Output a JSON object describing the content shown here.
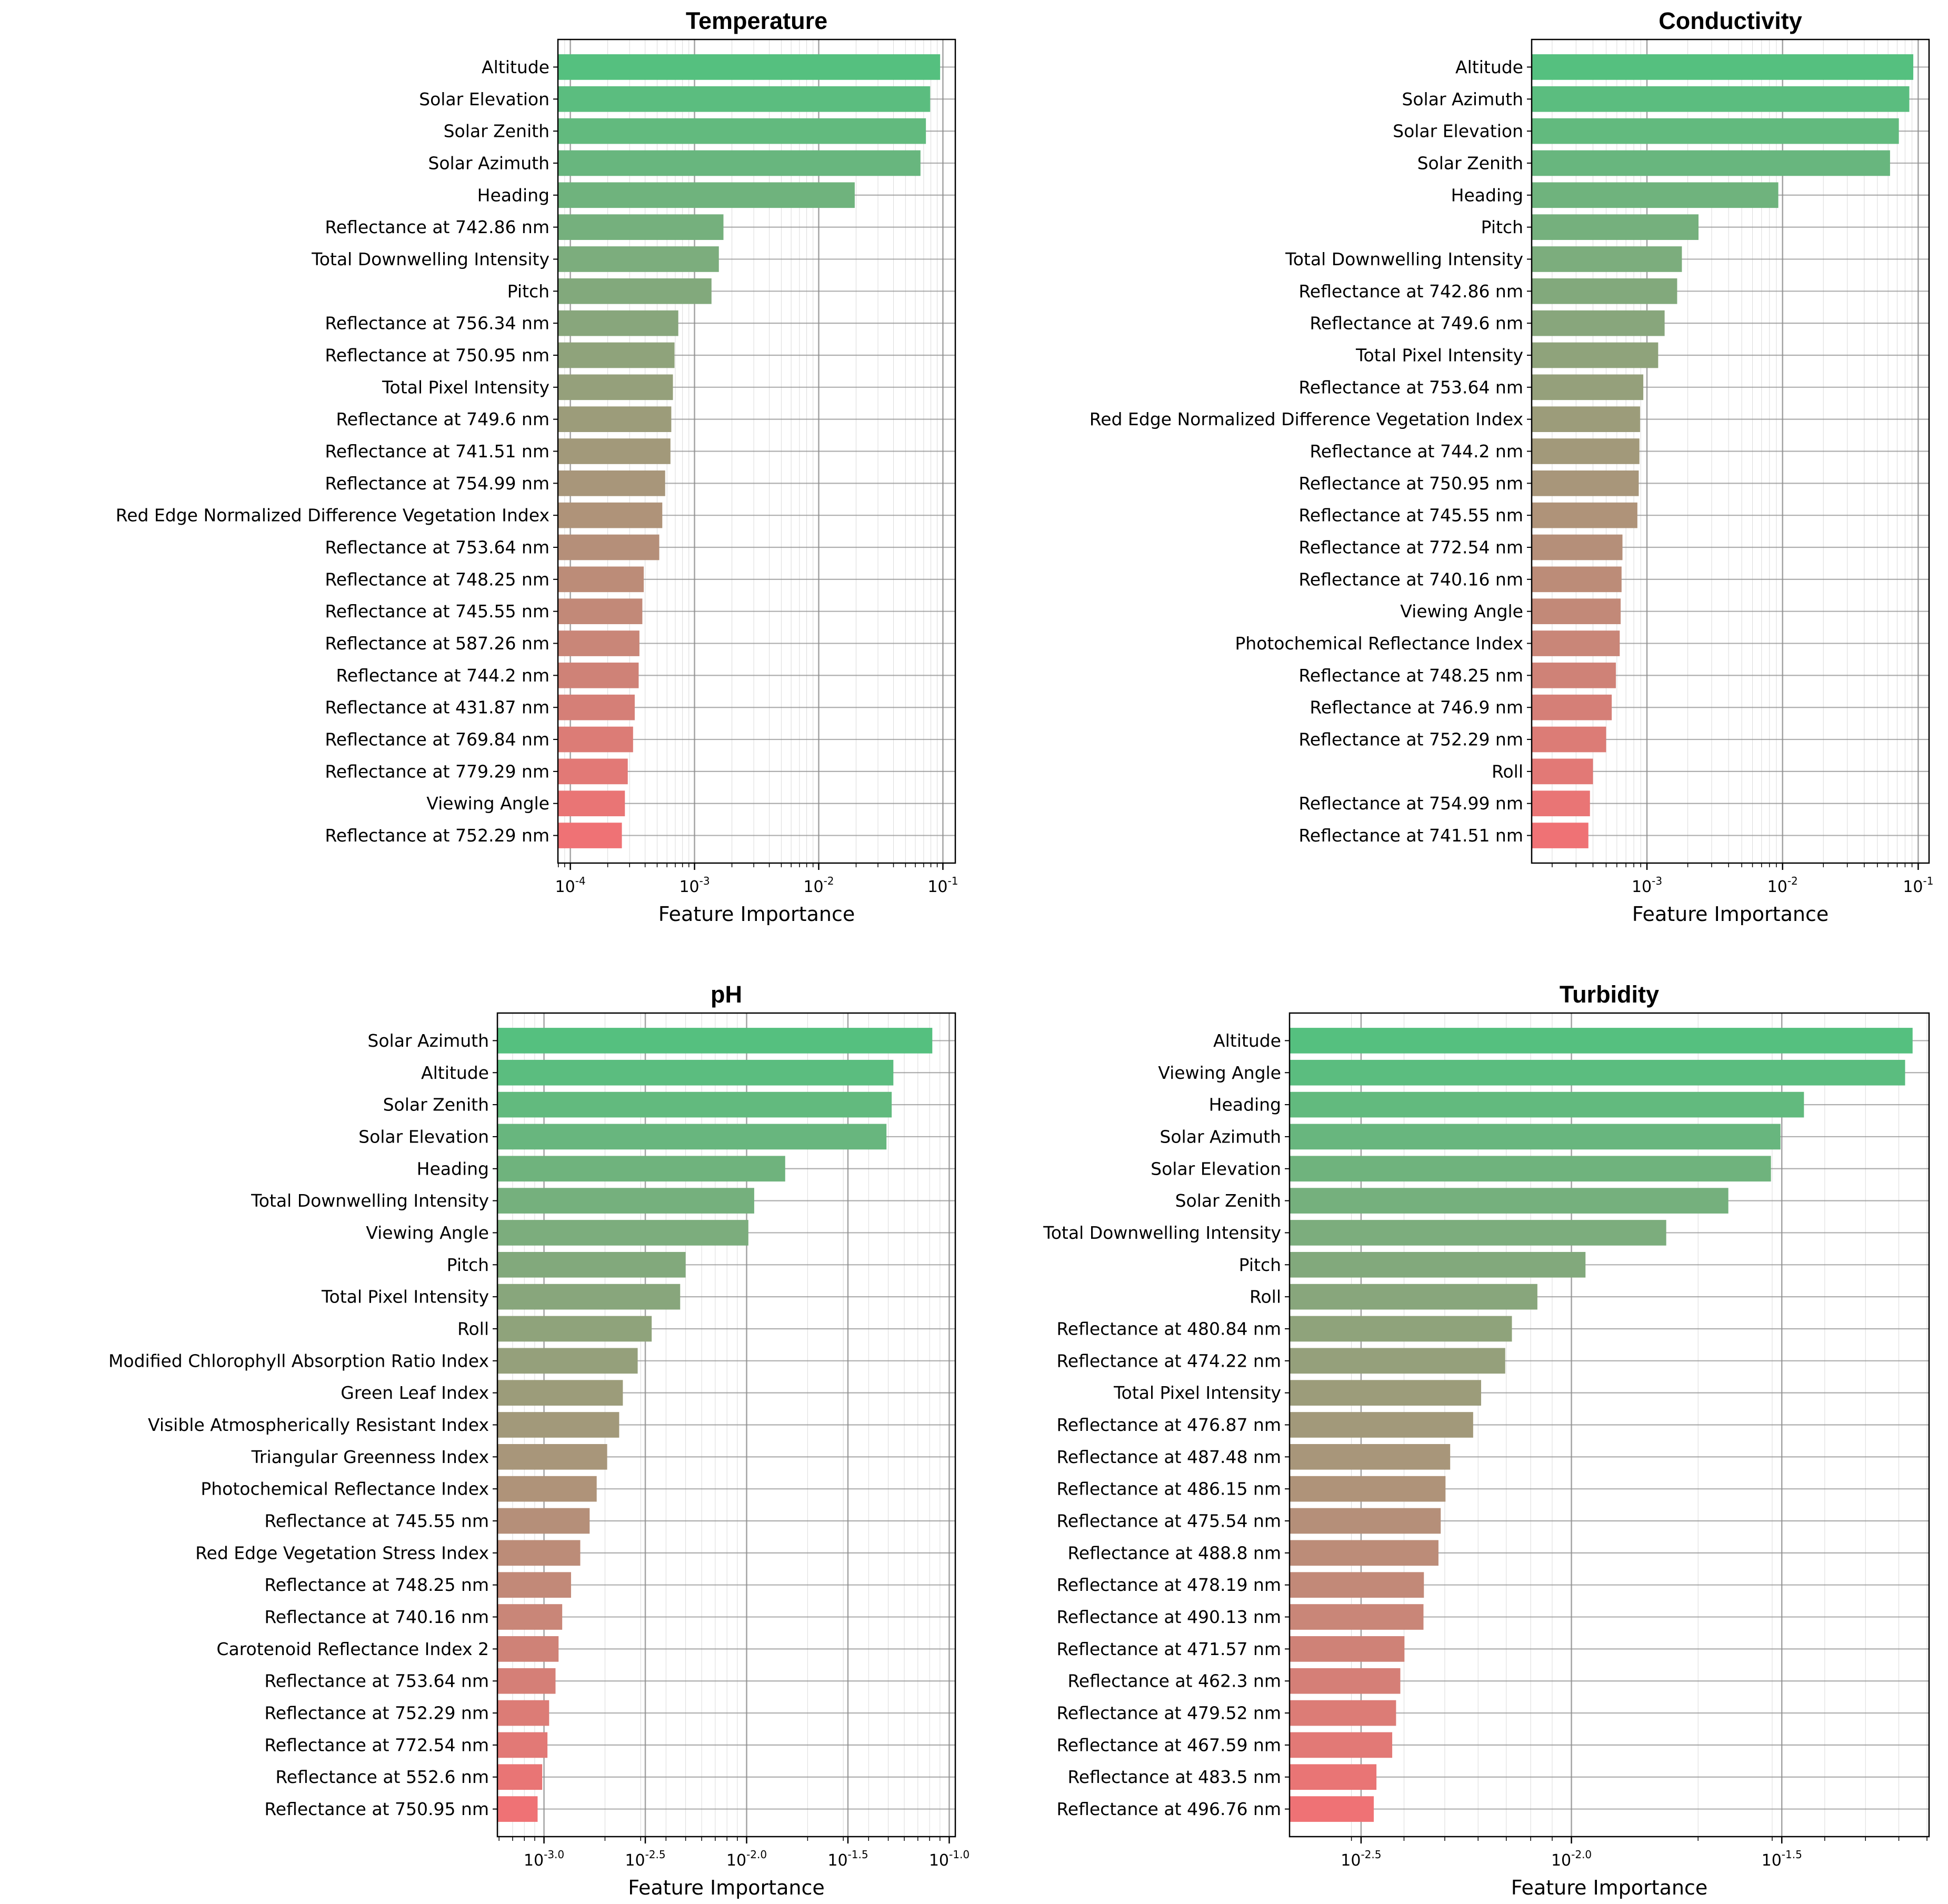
{
  "chart_data": [
    {
      "type": "bar",
      "orientation": "horizontal",
      "title": "Temperature",
      "xlabel": "Feature Importance",
      "xscale": "log",
      "xlim_log10": [
        -4.1,
        -0.9
      ],
      "xticks": [
        {
          "base": "10",
          "exp": "-4"
        },
        {
          "base": "10",
          "exp": "-3"
        },
        {
          "base": "10",
          "exp": "-2"
        },
        {
          "base": "10",
          "exp": "-1"
        }
      ],
      "xticks_log10": [
        -4,
        -3,
        -2,
        -1
      ],
      "minor_ticks": "log-decade",
      "grid": true,
      "categories": [
        "Altitude",
        "Solar Elevation",
        "Solar Zenith",
        "Solar Azimuth",
        "Heading",
        "Reflectance at 742.86 nm",
        "Total Downwelling Intensity",
        "Pitch",
        "Reflectance at 756.34 nm",
        "Reflectance at 750.95 nm",
        "Total Pixel Intensity",
        "Reflectance at 749.6 nm",
        "Reflectance at 741.51 nm",
        "Reflectance at 754.99 nm",
        "Red Edge Normalized Difference Vegetation Index",
        "Reflectance at 753.64 nm",
        "Reflectance at 748.25 nm",
        "Reflectance at 745.55 nm",
        "Reflectance at 587.26 nm",
        "Reflectance at 744.2 nm",
        "Reflectance at 431.87 nm",
        "Reflectance at 769.84 nm",
        "Reflectance at 779.29 nm",
        "Viewing Angle",
        "Reflectance at 752.29 nm"
      ],
      "values": [
        0.095,
        0.079,
        0.073,
        0.066,
        0.0195,
        0.00171,
        0.00157,
        0.00137,
        0.00074,
        0.00069,
        0.00067,
        0.00065,
        0.00064,
        0.00058,
        0.00055,
        0.00052,
        0.00039,
        0.00038,
        0.00036,
        0.000355,
        0.00033,
        0.00032,
        0.00029,
        0.000275,
        0.00026
      ]
    },
    {
      "type": "bar",
      "orientation": "horizontal",
      "title": "Conductivity",
      "xlabel": "Feature Importance",
      "xscale": "log",
      "xlim_log10": [
        -3.85,
        -0.92
      ],
      "xticks": [
        {
          "base": "10",
          "exp": "-3"
        },
        {
          "base": "10",
          "exp": "-2"
        },
        {
          "base": "10",
          "exp": "-1"
        }
      ],
      "xticks_log10": [
        -3,
        -2,
        -1
      ],
      "minor_ticks": "log-decade",
      "grid": true,
      "categories": [
        "Altitude",
        "Solar Azimuth",
        "Solar Elevation",
        "Solar Zenith",
        "Heading",
        "Pitch",
        "Total Downwelling Intensity",
        "Reflectance at 742.86 nm",
        "Reflectance at 749.6 nm",
        "Total Pixel Intensity",
        "Reflectance at 753.64 nm",
        "Red Edge Normalized Difference Vegetation Index",
        "Reflectance at 744.2 nm",
        "Reflectance at 750.95 nm",
        "Reflectance at 745.55 nm",
        "Reflectance at 772.54 nm",
        "Reflectance at 740.16 nm",
        "Viewing Angle",
        "Photochemical Reflectance Index",
        "Reflectance at 748.25 nm",
        "Reflectance at 746.9 nm",
        "Reflectance at 752.29 nm",
        "Roll",
        "Reflectance at 754.99 nm",
        "Reflectance at 741.51 nm"
      ],
      "values": [
        0.092,
        0.086,
        0.072,
        0.062,
        0.0093,
        0.0024,
        0.00181,
        0.00167,
        0.00135,
        0.00121,
        0.00094,
        0.00089,
        0.00088,
        0.00087,
        0.00085,
        0.00066,
        0.00065,
        0.00064,
        0.00063,
        0.00059,
        0.00055,
        0.0005,
        0.0004,
        0.00038,
        0.00037
      ]
    },
    {
      "type": "bar",
      "orientation": "horizontal",
      "title": "pH",
      "xlabel": "Feature Importance",
      "xscale": "log",
      "xlim_log10": [
        -3.23,
        -0.97
      ],
      "xticks": [
        {
          "base": "10",
          "exp": "-3.0"
        },
        {
          "base": "10",
          "exp": "-2.5"
        },
        {
          "base": "10",
          "exp": "-2.0"
        },
        {
          "base": "10",
          "exp": "-1.5"
        },
        {
          "base": "10",
          "exp": "-1.0"
        }
      ],
      "xticks_log10": [
        -3.0,
        -2.5,
        -2.0,
        -1.5,
        -1.0
      ],
      "minor_ticks": "log-decade",
      "grid": true,
      "categories": [
        "Solar Azimuth",
        "Altitude",
        "Solar Zenith",
        "Solar Elevation",
        "Heading",
        "Total Downwelling Intensity",
        "Viewing Angle",
        "Pitch",
        "Total Pixel Intensity",
        "Roll",
        "Modified Chlorophyll Absorption Ratio Index",
        "Green Leaf Index",
        "Visible Atmospherically Resistant Index",
        "Triangular Greenness Index",
        "Photochemical Reflectance Index",
        "Reflectance at 745.55 nm",
        "Red Edge Vegetation Stress Index",
        "Reflectance at 748.25 nm",
        "Reflectance at 740.16 nm",
        "Carotenoid Reflectance Index 2",
        "Reflectance at 753.64 nm",
        "Reflectance at 752.29 nm",
        "Reflectance at 772.54 nm",
        "Reflectance at 552.6 nm",
        "Reflectance at 750.95 nm"
      ],
      "values": [
        0.0825,
        0.053,
        0.052,
        0.049,
        0.0155,
        0.0109,
        0.0102,
        0.005,
        0.0047,
        0.0034,
        0.0029,
        0.00245,
        0.00235,
        0.00205,
        0.00182,
        0.00168,
        0.00151,
        0.00136,
        0.00123,
        0.00118,
        0.00114,
        0.00106,
        0.00104,
        0.00098,
        0.00093
      ]
    },
    {
      "type": "bar",
      "orientation": "horizontal",
      "title": "Turbidity",
      "xlabel": "Feature Importance",
      "xscale": "log",
      "xlim_log10": [
        -2.67,
        -1.15
      ],
      "xticks": [
        {
          "base": "10",
          "exp": "-2.5"
        },
        {
          "base": "10",
          "exp": "-2.0"
        },
        {
          "base": "10",
          "exp": "-1.5"
        }
      ],
      "xticks_log10": [
        -2.5,
        -2.0,
        -1.5
      ],
      "minor_ticks": "log-decade",
      "grid": true,
      "categories": [
        "Altitude",
        "Viewing Angle",
        "Heading",
        "Solar Azimuth",
        "Solar Elevation",
        "Solar Zenith",
        "Total Downwelling Intensity",
        "Pitch",
        "Roll",
        "Reflectance at 480.84 nm",
        "Reflectance at 474.22 nm",
        "Total Pixel Intensity",
        "Reflectance at 476.87 nm",
        "Reflectance at 487.48 nm",
        "Reflectance at 486.15 nm",
        "Reflectance at 475.54 nm",
        "Reflectance at 488.8 nm",
        "Reflectance at 478.19 nm",
        "Reflectance at 490.13 nm",
        "Reflectance at 471.57 nm",
        "Reflectance at 462.3 nm",
        "Reflectance at 479.52 nm",
        "Reflectance at 467.59 nm",
        "Reflectance at 483.5 nm",
        "Reflectance at 496.76 nm"
      ],
      "values": [
        0.0647,
        0.0621,
        0.0357,
        0.0314,
        0.0298,
        0.0236,
        0.0168,
        0.0108,
        0.0083,
        0.00722,
        0.00696,
        0.0061,
        0.00584,
        0.00515,
        0.00502,
        0.00489,
        0.00483,
        0.00446,
        0.00445,
        0.00401,
        0.00392,
        0.00383,
        0.00375,
        0.00344,
        0.00339
      ]
    }
  ],
  "colors": {
    "top": "#55c07f",
    "bottom": "#ef7275",
    "grid": "#b0b0b0",
    "axes": "#000000"
  }
}
